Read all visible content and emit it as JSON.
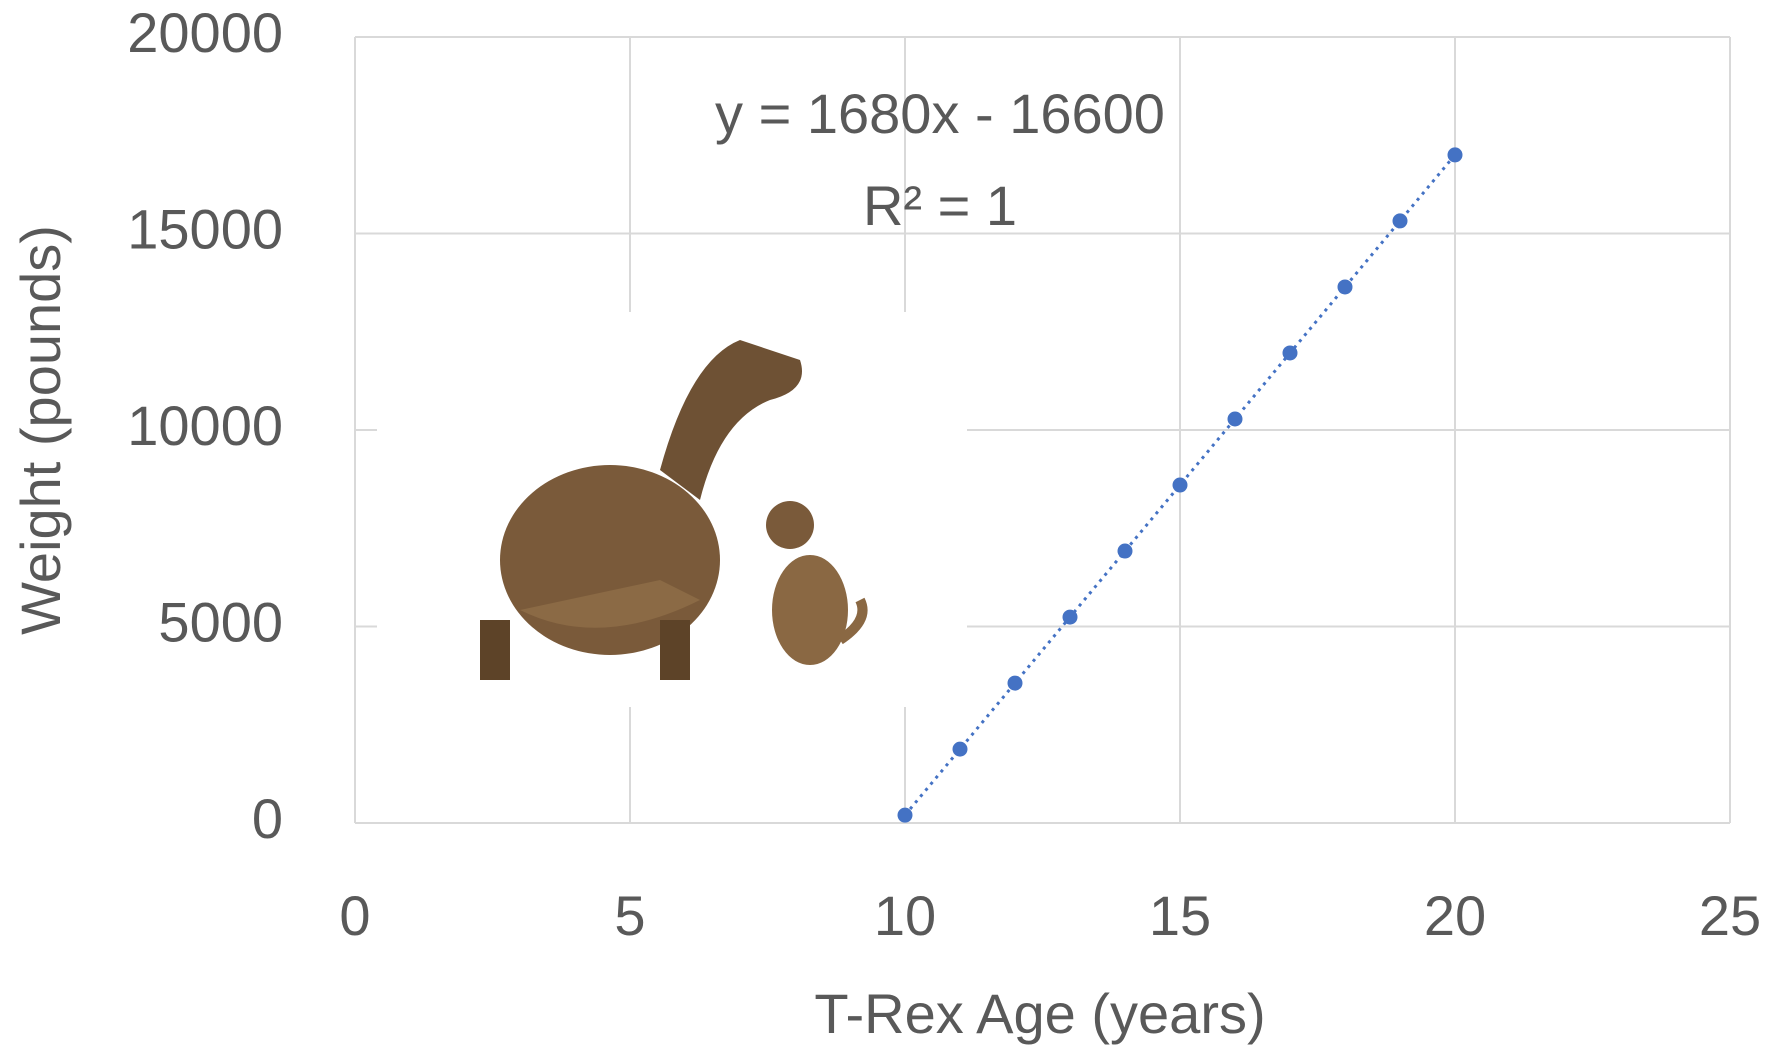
{
  "chart_data": {
    "type": "scatter",
    "x_label": "T-Rex Age (years)",
    "y_label": "Weight (pounds)",
    "annotations": [
      "y = 1680x - 16600",
      "R² = 1"
    ],
    "x": [
      10,
      11,
      12,
      13,
      14,
      15,
      16,
      17,
      18,
      19,
      20
    ],
    "values": [
      200,
      1880,
      3560,
      5240,
      6920,
      8600,
      10280,
      11960,
      13640,
      15320,
      17000
    ],
    "color": "#4472c4",
    "trendline": true,
    "xlim": [
      0,
      25
    ],
    "ylim": [
      0,
      20000
    ],
    "xticks": [
      0,
      5,
      10,
      15,
      20,
      25
    ],
    "yticks": [
      0,
      5000,
      10000,
      15000,
      20000
    ],
    "grid": true
  }
}
